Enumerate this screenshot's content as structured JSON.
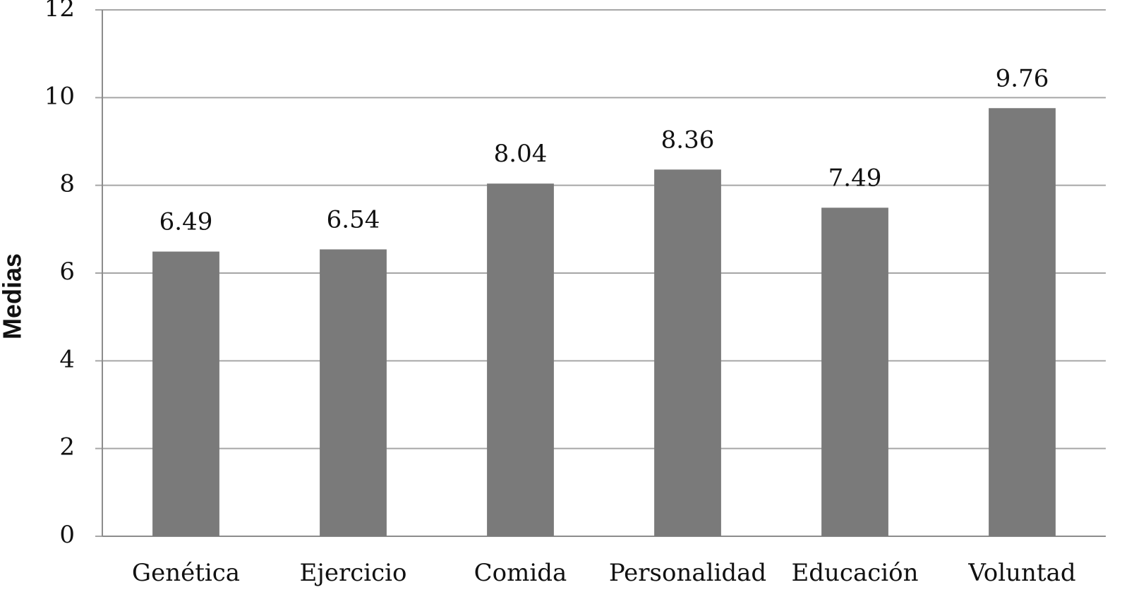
{
  "chart_data": {
    "type": "bar",
    "y_label": "Medias",
    "categories": [
      "Genética",
      "Ejercicio",
      "Comida",
      "Personalidad",
      "Educación",
      "Voluntad"
    ],
    "values": [
      6.49,
      6.54,
      8.04,
      8.36,
      7.49,
      9.76
    ],
    "color": "#7a7a7a",
    "ylim": [
      0,
      12
    ],
    "yticks": [
      0,
      2,
      4,
      6,
      8,
      10,
      12
    ],
    "grid": true
  }
}
